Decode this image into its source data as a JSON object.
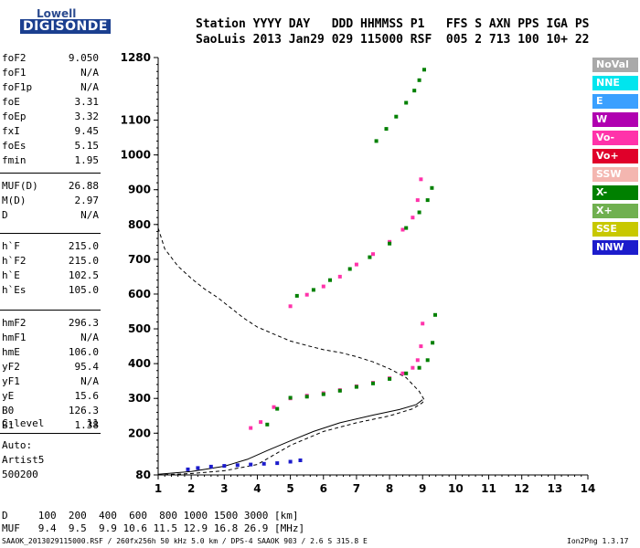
{
  "logo": {
    "line1": "Lowell",
    "line2": "DIGISONDE"
  },
  "header": {
    "row1": "Station YYYY DAY   DDD HHMMSS P1   FFS S AXN PPS IGA PS",
    "row2": "SaoLuis 2013 Jan29 029 115000 RSF  005 2 713 100 10+ 22"
  },
  "params_group1": [
    {
      "name": "foF2",
      "value": "9.050"
    },
    {
      "name": "foF1",
      "value": "N/A"
    },
    {
      "name": "foF1p",
      "value": "N/A"
    },
    {
      "name": "foE",
      "value": "3.31"
    },
    {
      "name": "foEp",
      "value": "3.32"
    },
    {
      "name": "fxI",
      "value": "9.45"
    },
    {
      "name": "foEs",
      "value": "5.15"
    },
    {
      "name": "fmin",
      "value": "1.95"
    }
  ],
  "params_group2": [
    {
      "name": "MUF(D)",
      "value": "26.88"
    },
    {
      "name": "M(D)",
      "value": "2.97"
    },
    {
      "name": "D",
      "value": "N/A"
    }
  ],
  "params_group3": [
    {
      "name": "h`F",
      "value": "215.0"
    },
    {
      "name": "h`F2",
      "value": "215.0"
    },
    {
      "name": "h`E",
      "value": "102.5"
    },
    {
      "name": "h`Es",
      "value": "105.0"
    }
  ],
  "params_group4": [
    {
      "name": "hmF2",
      "value": "296.3"
    },
    {
      "name": "hmF1",
      "value": "N/A"
    },
    {
      "name": "hmE",
      "value": "106.0"
    },
    {
      "name": "yF2",
      "value": "95.4"
    },
    {
      "name": "yF1",
      "value": "N/A"
    },
    {
      "name": "yE",
      "value": "15.6"
    },
    {
      "name": "B0",
      "value": "126.3"
    },
    {
      "name": "B1",
      "value": "1.38"
    }
  ],
  "c_level": {
    "name": "C-level",
    "value": "11"
  },
  "auto": {
    "line1": "Auto:",
    "line2": "Artist5",
    "line3": "500200"
  },
  "legend": [
    {
      "label": "NoVal",
      "color": "#a9a9a9"
    },
    {
      "label": "NNE",
      "color": "#00e5ee"
    },
    {
      "label": "E",
      "color": "#3aa0ff"
    },
    {
      "label": "W",
      "color": "#b000b0"
    },
    {
      "label": "Vo-",
      "color": "#ff33aa"
    },
    {
      "label": "Vo+",
      "color": "#e0002a"
    },
    {
      "label": "SSW",
      "color": "#f4b6b0"
    },
    {
      "label": "X-",
      "color": "#008000"
    },
    {
      "label": "X+",
      "color": "#70b050"
    },
    {
      "label": "SSE",
      "color": "#c8c800"
    },
    {
      "label": "NNW",
      "color": "#1c1ccc"
    }
  ],
  "footer": {
    "d_row": "D     100  200  400  600  800 1000 1500 3000 [km]",
    "muf_row": "MUF   9.4  9.5  9.9 10.6 11.5 12.9 16.8 26.9 [MHz]",
    "file_info": "SAAOK_2013029115000.RSF / 260fx256h 50 kHz 5.0 km / DPS-4 SAAOK 903 / 2.6 S 315.8 E",
    "version": "Ion2Png 1.3.17"
  },
  "chart_data": {
    "type": "scatter",
    "xlim": [
      1,
      14
    ],
    "ylim": [
      80,
      1280
    ],
    "x_ticks": [
      1,
      2,
      3,
      4,
      5,
      6,
      7,
      8,
      9,
      10,
      11,
      12,
      13,
      14
    ],
    "y_ticks": [
      80,
      200,
      300,
      400,
      500,
      600,
      700,
      800,
      900,
      1000,
      1100,
      1280
    ],
    "x_scale": "linear",
    "y_scale": "linear",
    "grid": false,
    "legend_placement": "right",
    "profile_curve": {
      "x": [
        1.0,
        2.0,
        3.0,
        4.0,
        5.0,
        6.0,
        7.0,
        8.0,
        8.7,
        9.0,
        9.05,
        8.9,
        8.5,
        8.0,
        7.5,
        7.0,
        6.5,
        6.0,
        5.5,
        5.0,
        4.5,
        4.0,
        3.6,
        3.2,
        2.8,
        2.4,
        2.0,
        1.6,
        1.2,
        1.0
      ],
      "y": [
        80,
        84,
        92,
        110,
        165,
        205,
        230,
        250,
        270,
        288,
        296,
        320,
        360,
        385,
        405,
        420,
        432,
        440,
        452,
        465,
        485,
        505,
        530,
        560,
        590,
        615,
        645,
        680,
        730,
        790
      ]
    },
    "true_height_curve": {
      "x": [
        1.0,
        2.0,
        3.0,
        3.7,
        4.3,
        5.0,
        5.7,
        6.5,
        7.5,
        8.3,
        8.8,
        9.0
      ],
      "y": [
        82,
        90,
        105,
        125,
        150,
        178,
        205,
        230,
        252,
        268,
        282,
        296
      ]
    },
    "traces": [
      {
        "name": "F2 O-trace",
        "color": "#ff33aa",
        "x": [
          3.8,
          4.1,
          4.5,
          5.0,
          5.5,
          6.0,
          6.5,
          7.0,
          7.5,
          8.0,
          8.4,
          8.7,
          8.85,
          8.95,
          9.0
        ],
        "y": [
          215,
          232,
          275,
          300,
          308,
          315,
          324,
          335,
          345,
          358,
          372,
          388,
          410,
          450,
          515
        ]
      },
      {
        "name": "F2 X-trace",
        "color": "#008000",
        "x": [
          4.3,
          4.6,
          5.0,
          5.5,
          6.0,
          6.5,
          7.0,
          7.5,
          8.0,
          8.5,
          8.9,
          9.15,
          9.3,
          9.38
        ],
        "y": [
          225,
          270,
          302,
          305,
          312,
          322,
          333,
          343,
          356,
          372,
          388,
          410,
          460,
          540
        ]
      },
      {
        "name": "Second hop O",
        "color": "#ff33aa",
        "x": [
          5.0,
          5.5,
          6.0,
          6.5,
          7.0,
          7.5,
          8.0,
          8.4,
          8.7,
          8.85,
          8.95
        ],
        "y": [
          565,
          598,
          622,
          650,
          685,
          715,
          750,
          785,
          820,
          870,
          930
        ]
      },
      {
        "name": "Second hop X",
        "color": "#008000",
        "x": [
          5.2,
          5.7,
          6.2,
          6.8,
          7.4,
          8.0,
          8.5,
          8.9,
          9.15,
          9.28
        ],
        "y": [
          595,
          612,
          640,
          672,
          706,
          745,
          790,
          835,
          870,
          905
        ]
      },
      {
        "name": "Third hop X",
        "color": "#008000",
        "x": [
          7.6,
          7.9,
          8.2,
          8.5,
          8.75,
          8.9,
          9.05
        ],
        "y": [
          1040,
          1075,
          1110,
          1150,
          1185,
          1215,
          1245
        ]
      },
      {
        "name": "E/Es low",
        "color": "#1c1ccc",
        "x": [
          1.9,
          2.2,
          2.6,
          3.0,
          3.4,
          3.8,
          4.2,
          4.6,
          5.0,
          5.3
        ],
        "y": [
          96,
          100,
          104,
          106,
          108,
          110,
          112,
          114,
          118,
          122
        ]
      }
    ]
  }
}
